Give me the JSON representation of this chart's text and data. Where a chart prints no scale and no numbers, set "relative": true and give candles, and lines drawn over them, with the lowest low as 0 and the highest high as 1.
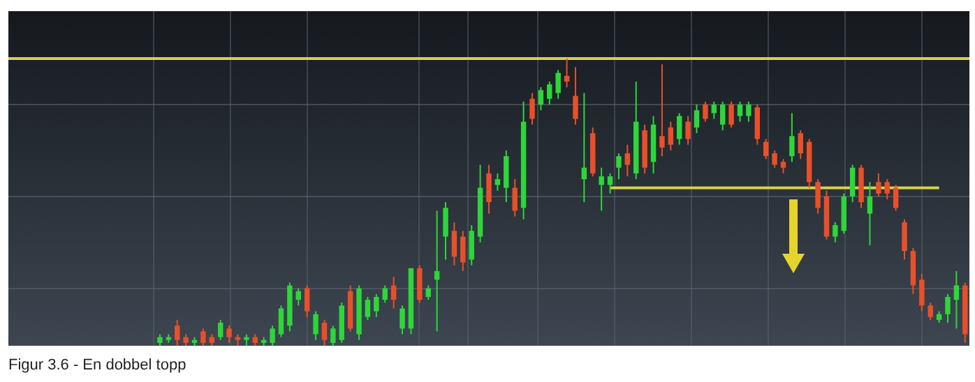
{
  "chart_data": {
    "type": "candlestick",
    "relative": true,
    "grid": true,
    "annotations": [
      "Figur 3.6 - En dobbel topp"
    ],
    "colors": [
      null,
      null,
      null,
      null,
      null,
      null,
      null,
      null,
      null,
      null,
      null,
      null,
      null,
      null,
      null,
      null,
      null,
      "#2ed63a",
      "#2ed63a",
      "#e8502a",
      "#e8502a",
      "#2ed63a",
      "#e8502a",
      "#e8502a",
      "#2ed63a",
      "#e8502a",
      "#e8502a",
      "#2ed63a",
      "#e8502a",
      "#2ed63a",
      "#2ed63a",
      "#2ed63a",
      "#2ed63a",
      "#2ed63a",
      "#e8502a",
      "#2ed63a",
      "#e8502a",
      "#2ed63a",
      "#2ed63a",
      "#e8502a",
      "#2ed63a",
      "#2ed63a",
      "#2ed63a",
      "#2ed63a",
      "#e8502a",
      "#2ed63a",
      "#2ed63a",
      "#e8502a",
      "#2ed63a",
      "#2ed63a",
      "#2ed63a",
      "#e8502a",
      "#e8502a",
      "#2ed63a",
      "#2ed63a",
      "#e8502a",
      "#2ed63a",
      "#2ed63a",
      "#e8502a",
      "#2ed63a",
      "#e8502a",
      "#2ed63a",
      "#2ed63a",
      "#2ed63a",
      "#e8502a",
      "#e8502a",
      "#2ed63a",
      "#e8502a",
      "#2ed63a",
      "#2ed63a",
      "#2ed63a",
      "#e8502a",
      "#2ed63a",
      "#e8502a",
      "#2ed63a",
      "#e8502a",
      "#e8502a",
      "#2ed63a",
      "#e8502a",
      "#2ed63a",
      "#e8502a",
      "#2ed63a",
      "#2ed63a",
      "#e8502a",
      "#2ed63a",
      "#2ed63a",
      "#e8502a",
      "#e8502a",
      "#e8502a",
      "#e8502a",
      "#2ed63a",
      "#e8502a",
      "#e8502a",
      "#e8502a",
      "#e8502a",
      "#2ed63a",
      "#2ed63a",
      "#2ed63a",
      "#e8502a",
      "#2ed63a",
      "#e8502a",
      "#e8502a",
      "#e8502a",
      "#e8502a",
      "#e8502a",
      "#e8502a",
      "#e8502a",
      "#2ed63a",
      "#2ed63a",
      "#2ed63a",
      "#e8502a"
    ],
    "categories": [
      null,
      null,
      null,
      null,
      null,
      null,
      null,
      null,
      null,
      null,
      null,
      null,
      null,
      null,
      null,
      null,
      null,
      null,
      null,
      null,
      null,
      null,
      null,
      null,
      null,
      null,
      null,
      null,
      null,
      null,
      null,
      null,
      null,
      null,
      null,
      null,
      null,
      null,
      null,
      null,
      null,
      null,
      null,
      null,
      null,
      null,
      null,
      null,
      null,
      null,
      null,
      null,
      null,
      null,
      null,
      null,
      null,
      null,
      null,
      null,
      null,
      null,
      null,
      null,
      null,
      null,
      null,
      null,
      null,
      null,
      null,
      null,
      null,
      null,
      null,
      null,
      null,
      null,
      null,
      null,
      null,
      null,
      null,
      null,
      null,
      null,
      null,
      null,
      null,
      null,
      null,
      null,
      null,
      null,
      null,
      null,
      null,
      null,
      null,
      null,
      null,
      null,
      null,
      null,
      null,
      null,
      null,
      null,
      null,
      null,
      null
    ],
    "ohlc": [
      null,
      null,
      null,
      null,
      null,
      null,
      null,
      null,
      null,
      null,
      null,
      null,
      null,
      null,
      null,
      null,
      null,
      [
        0.01,
        0.04,
        0.0,
        0.03
      ],
      [
        0.02,
        0.04,
        0.01,
        0.03
      ],
      [
        0.07,
        0.09,
        0.0,
        0.02
      ],
      [
        0.03,
        0.04,
        0.0,
        0.01
      ],
      [
        0.01,
        0.03,
        0.0,
        0.02
      ],
      [
        0.05,
        0.06,
        0.0,
        0.01
      ],
      [
        0.03,
        0.04,
        0.0,
        0.01
      ],
      [
        0.03,
        0.09,
        0.02,
        0.08
      ],
      [
        0.06,
        0.07,
        0.01,
        0.03
      ],
      [
        0.03,
        0.04,
        0.0,
        0.02
      ],
      [
        0.02,
        0.04,
        0.0,
        0.03
      ],
      [
        0.03,
        0.04,
        0.0,
        0.01
      ],
      [
        0.01,
        0.03,
        0.0,
        0.02
      ],
      [
        0.01,
        0.07,
        0.0,
        0.06
      ],
      [
        0.04,
        0.14,
        0.03,
        0.13
      ],
      [
        0.07,
        0.22,
        0.05,
        0.21
      ],
      [
        0.16,
        0.2,
        0.14,
        0.19
      ],
      [
        0.2,
        0.21,
        0.1,
        0.12
      ],
      [
        0.04,
        0.12,
        0.02,
        0.11
      ],
      [
        0.08,
        0.09,
        0.0,
        0.02
      ],
      [
        0.01,
        0.07,
        0.0,
        0.06
      ],
      [
        0.02,
        0.15,
        0.01,
        0.14
      ],
      [
        0.19,
        0.21,
        0.05,
        0.06
      ],
      [
        0.04,
        0.21,
        0.02,
        0.2
      ],
      [
        0.1,
        0.17,
        0.09,
        0.16
      ],
      [
        0.12,
        0.18,
        0.1,
        0.17
      ],
      [
        0.16,
        0.21,
        0.15,
        0.2
      ],
      [
        0.21,
        0.24,
        0.13,
        0.16
      ],
      [
        0.06,
        0.14,
        0.04,
        0.13
      ],
      [
        0.06,
        0.27,
        0.04,
        0.27
      ],
      [
        0.27,
        0.28,
        0.15,
        0.16
      ],
      [
        0.17,
        0.21,
        0.16,
        0.2
      ],
      [
        0.23,
        0.47,
        0.05,
        0.26
      ],
      [
        0.38,
        0.5,
        0.3,
        0.48
      ],
      [
        0.4,
        0.43,
        0.28,
        0.31
      ],
      [
        0.38,
        0.4,
        0.26,
        0.29
      ],
      [
        0.3,
        0.42,
        0.28,
        0.4
      ],
      [
        0.38,
        0.63,
        0.36,
        0.55
      ],
      [
        0.6,
        0.63,
        0.46,
        0.5
      ],
      [
        0.56,
        0.6,
        0.54,
        0.58
      ],
      [
        0.55,
        0.68,
        0.5,
        0.66
      ],
      [
        0.55,
        0.58,
        0.45,
        0.47
      ],
      [
        0.48,
        0.85,
        0.44,
        0.78
      ],
      [
        0.86,
        0.88,
        0.77,
        0.79
      ],
      [
        0.84,
        0.9,
        0.82,
        0.89
      ],
      [
        0.86,
        0.92,
        0.84,
        0.91
      ],
      [
        0.88,
        0.96,
        0.86,
        0.95
      ],
      [
        0.94,
        1.0,
        0.9,
        0.92
      ],
      [
        0.87,
        0.97,
        0.77,
        0.79
      ],
      [
        0.58,
        0.88,
        0.5,
        0.62
      ],
      [
        0.74,
        0.76,
        0.59,
        0.6
      ],
      [
        0.56,
        0.62,
        0.47,
        0.59
      ],
      [
        0.56,
        0.6,
        0.53,
        0.59
      ],
      [
        0.62,
        0.67,
        0.58,
        0.66
      ],
      [
        0.67,
        0.7,
        0.59,
        0.63
      ],
      [
        0.6,
        0.92,
        0.58,
        0.78
      ],
      [
        0.75,
        0.77,
        0.6,
        0.62
      ],
      [
        0.64,
        0.8,
        0.6,
        0.77
      ],
      [
        0.73,
        0.98,
        0.66,
        0.69
      ],
      [
        0.76,
        0.78,
        0.68,
        0.7
      ],
      [
        0.72,
        0.81,
        0.7,
        0.8
      ],
      [
        0.78,
        0.8,
        0.7,
        0.72
      ],
      [
        0.76,
        0.84,
        0.74,
        0.82
      ],
      [
        0.84,
        0.85,
        0.78,
        0.79
      ],
      [
        0.81,
        0.85,
        0.79,
        0.84
      ],
      [
        0.77,
        0.85,
        0.75,
        0.84
      ],
      [
        0.84,
        0.85,
        0.76,
        0.77
      ],
      [
        0.8,
        0.85,
        0.78,
        0.84
      ],
      [
        0.8,
        0.85,
        0.78,
        0.84
      ],
      [
        0.83,
        0.84,
        0.7,
        0.72
      ],
      [
        0.71,
        0.72,
        0.65,
        0.66
      ],
      [
        0.67,
        0.68,
        0.62,
        0.63
      ],
      [
        0.64,
        0.65,
        0.6,
        0.62
      ],
      [
        0.66,
        0.81,
        0.64,
        0.73
      ],
      [
        0.74,
        0.75,
        0.65,
        0.67
      ],
      [
        0.71,
        0.72,
        0.55,
        0.57
      ],
      [
        0.57,
        0.58,
        0.46,
        0.48
      ],
      [
        0.52,
        0.54,
        0.37,
        0.38
      ],
      [
        0.38,
        0.43,
        0.36,
        0.42
      ],
      [
        0.4,
        0.53,
        0.39,
        0.52
      ],
      [
        0.52,
        0.63,
        0.5,
        0.62
      ],
      [
        0.62,
        0.63,
        0.48,
        0.5
      ],
      [
        0.46,
        0.57,
        0.35,
        0.52
      ],
      [
        0.57,
        0.6,
        0.52,
        0.53
      ],
      [
        0.57,
        0.58,
        0.51,
        0.53
      ],
      [
        0.55,
        0.56,
        0.47,
        0.48
      ],
      [
        0.43,
        0.44,
        0.3,
        0.33
      ],
      [
        0.33,
        0.34,
        0.18,
        0.21
      ],
      [
        0.23,
        0.25,
        0.12,
        0.14
      ],
      [
        0.14,
        0.15,
        0.09,
        0.1
      ],
      [
        0.09,
        0.12,
        0.08,
        0.11
      ],
      [
        0.11,
        0.18,
        0.08,
        0.17
      ],
      [
        0.16,
        0.26,
        0.06,
        0.21
      ],
      [
        0.21,
        0.22,
        0.01,
        0.04
      ]
    ],
    "series": [
      {
        "type": "line",
        "color": "#d6d24a",
        "values": [
          null,
          null,
          null,
          null,
          null,
          null,
          null,
          null,
          null,
          null,
          null,
          null,
          null,
          null,
          null,
          null,
          null,
          null,
          null,
          null,
          null,
          null,
          null,
          null,
          null,
          null,
          null,
          null,
          null,
          null,
          null,
          null,
          null,
          null,
          null,
          null,
          null,
          null,
          null,
          null,
          null,
          null,
          null,
          null,
          null,
          null,
          null,
          null,
          null,
          null,
          null,
          null,
          null,
          null,
          null,
          null,
          null,
          null,
          null,
          null,
          null,
          null,
          null,
          null,
          null,
          null,
          null,
          null,
          null,
          0.55,
          0.55,
          0.55,
          0.55,
          0.55,
          0.55,
          0.55,
          0.55,
          0.55,
          0.55,
          0.55,
          0.55,
          0.55,
          0.55,
          0.55,
          0.55,
          0.55,
          0.55,
          0.55,
          0.55,
          0.55,
          0.55,
          0.55,
          0.55,
          0.55,
          0.55,
          0.55,
          0.55,
          0.55,
          0.55,
          0.55,
          0.55,
          0.55,
          0.55,
          0.55,
          0.55,
          0.55,
          0.55,
          0.55,
          null,
          null,
          null
        ]
      }
    ],
    "ref_lines": [
      {
        "axis": "y",
        "value": 1.0,
        "color": "#d6d24a"
      }
    ]
  }
}
